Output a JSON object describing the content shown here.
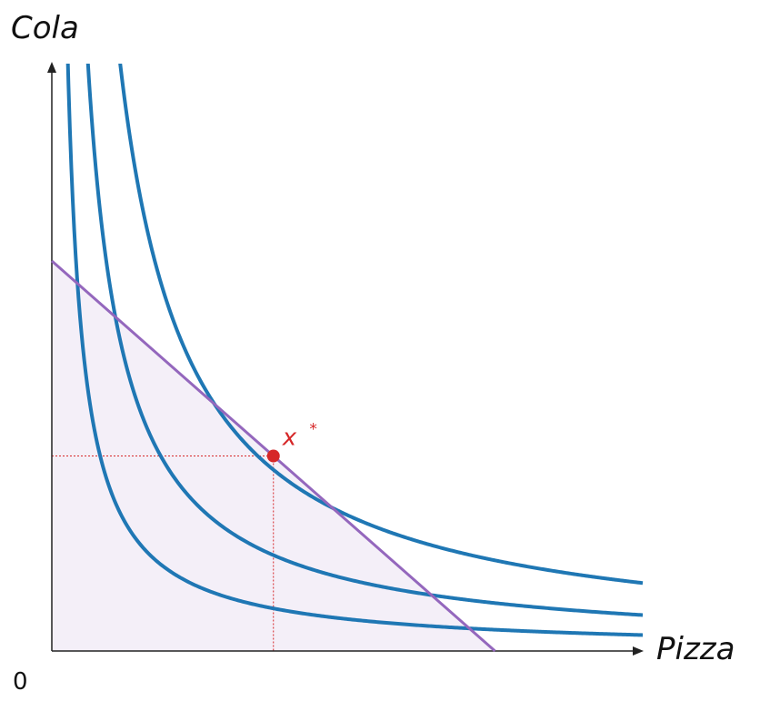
{
  "chart_data": {
    "type": "line",
    "xlabel": "Pizza",
    "ylabel": "Cola",
    "origin_label": "0",
    "xlim": [
      0,
      10
    ],
    "ylim": [
      0,
      10
    ],
    "budget_line": {
      "intercept_x": 7.5,
      "intercept_y": 6.6,
      "fill_color": "#f4eff8",
      "line_color": "#9467bd"
    },
    "indifference_curves": [
      {
        "k": 2.7,
        "color": "#1f77b4"
      },
      {
        "k": 6.08,
        "color": "#1f77b4"
      },
      {
        "k": 11.5,
        "color": "#1f77b4"
      }
    ],
    "optimum": {
      "label": "x",
      "label_sup": "*",
      "x": 3.75,
      "y": 3.3,
      "color": "#d62728"
    },
    "grid": false,
    "legend": "none"
  }
}
